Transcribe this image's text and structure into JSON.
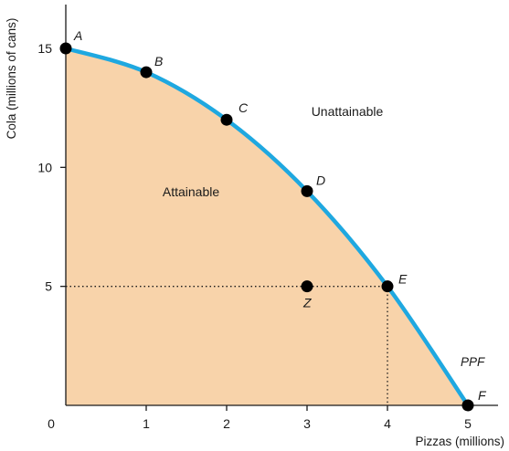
{
  "chart_data": {
    "type": "line",
    "title": "",
    "xlabel": "Pizzas (millions)",
    "ylabel": "Cola (millions of cans)",
    "xlim": [
      0,
      5
    ],
    "ylim": [
      0,
      15
    ],
    "x_ticks": [
      "0",
      "1",
      "2",
      "3",
      "4",
      "5"
    ],
    "y_ticks": [
      "5",
      "10",
      "15"
    ],
    "grid": false,
    "series": [
      {
        "name": "PPF",
        "x": [
          0,
          1,
          2,
          3,
          4,
          5
        ],
        "y": [
          15,
          14,
          12,
          9,
          5,
          0
        ]
      }
    ],
    "points": [
      {
        "label": "A",
        "x": 0,
        "y": 15
      },
      {
        "label": "B",
        "x": 1,
        "y": 14
      },
      {
        "label": "C",
        "x": 2,
        "y": 12
      },
      {
        "label": "D",
        "x": 3,
        "y": 9
      },
      {
        "label": "E",
        "x": 4,
        "y": 5
      },
      {
        "label": "F",
        "x": 5,
        "y": 0
      },
      {
        "label": "Z",
        "x": 3,
        "y": 5
      }
    ],
    "regions": {
      "attainable": "Attainable",
      "unattainable": "Unattainable"
    },
    "colors": {
      "curve": "#1fa8e0",
      "fill": "#f8d3aa",
      "points": "#000000",
      "axes": "#1a1a1a"
    }
  }
}
